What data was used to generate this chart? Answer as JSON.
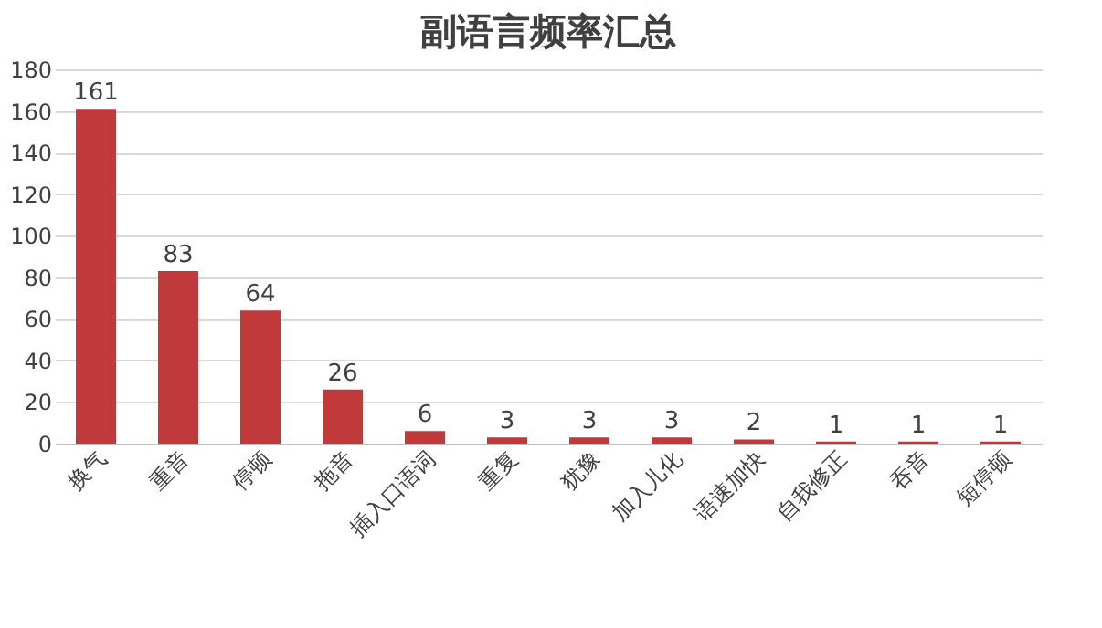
{
  "chart_data": {
    "type": "bar",
    "title": "副语言频率汇总",
    "categories": [
      "换气",
      "重音",
      "停顿",
      "拖音",
      "插入口语词",
      "重复",
      "犹豫",
      "加入儿化",
      "语速加快",
      "自我修正",
      "吞音",
      "短停顿"
    ],
    "values": [
      161,
      83,
      64,
      26,
      6,
      3,
      3,
      3,
      2,
      1,
      1,
      1
    ],
    "color": "#c0393b",
    "ylim": [
      0,
      180
    ],
    "yticks": [
      0,
      20,
      40,
      60,
      80,
      100,
      120,
      140,
      160,
      180
    ],
    "grid": "y",
    "data_labels": true
  }
}
